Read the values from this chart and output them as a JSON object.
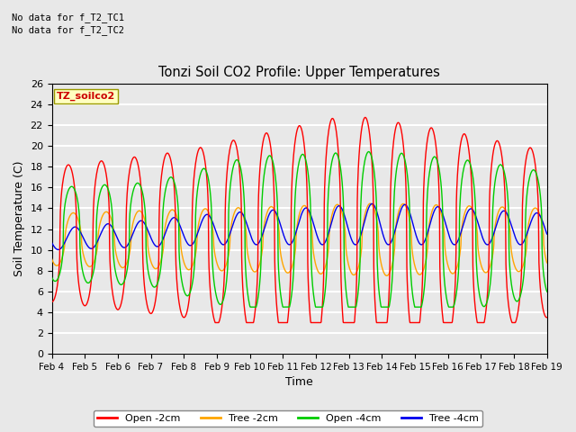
{
  "title": "Tonzi Soil CO2 Profile: Upper Temperatures",
  "xlabel": "Time",
  "ylabel": "Soil Temperature (C)",
  "top_text": "No data for f_T2_TC1\nNo data for f_T2_TC2",
  "box_label": "TZ_soilco2",
  "ylim": [
    0,
    26
  ],
  "xtick_labels": [
    "Feb 4",
    "Feb 5",
    "Feb 6",
    "Feb 7",
    "Feb 8",
    "Feb 9",
    "Feb 10",
    "Feb 11",
    "Feb 12",
    "Feb 13",
    "Feb 14",
    "Feb 15",
    "Feb 16",
    "Feb 17",
    "Feb 18",
    "Feb 19"
  ],
  "colors": {
    "open_2cm": "#FF0000",
    "tree_2cm": "#FFA500",
    "open_4cm": "#00CC00",
    "tree_4cm": "#0000EE"
  },
  "legend_labels": [
    "Open -2cm",
    "Tree -2cm",
    "Open -4cm",
    "Tree -4cm"
  ],
  "background_color": "#E8E8E8",
  "grid_color": "#FFFFFF"
}
